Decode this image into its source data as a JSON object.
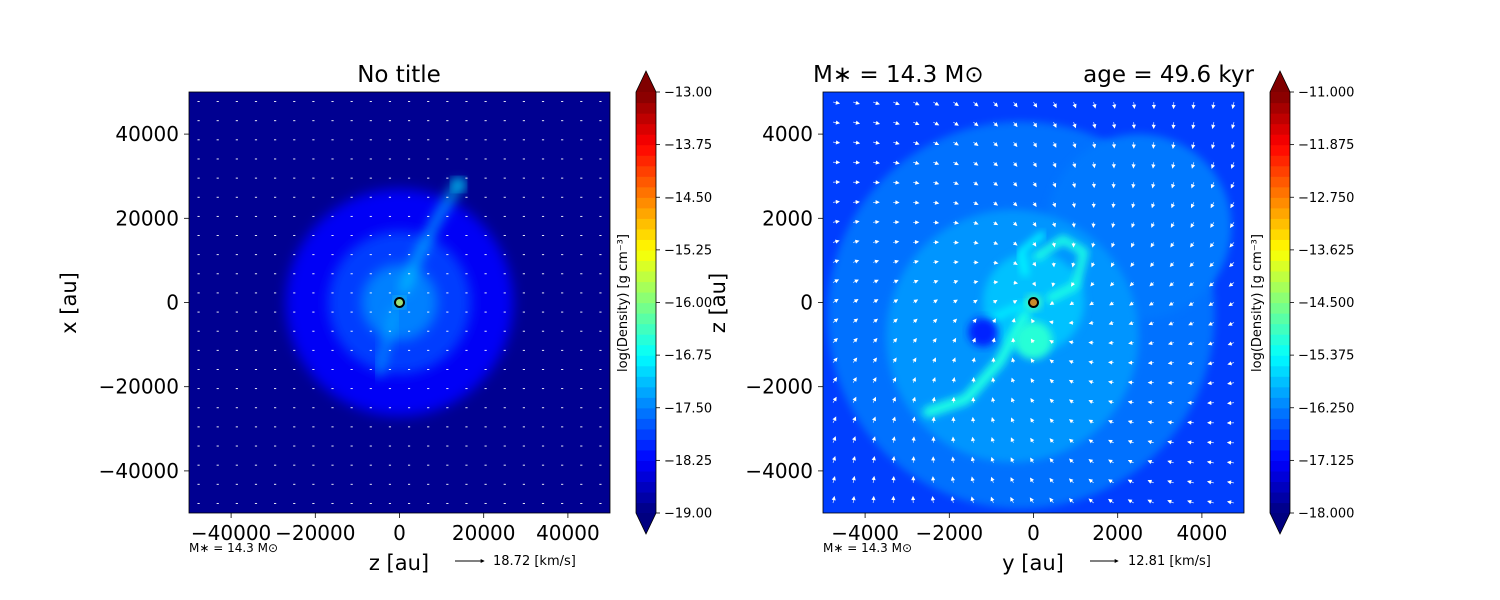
{
  "chart_data": [
    {
      "type": "heatmap",
      "title": "No title",
      "xlabel": "z [au]",
      "ylabel": "x [au]",
      "xlim": [
        -50000,
        50000
      ],
      "ylim": [
        -50000,
        50000
      ],
      "x_ticks": [
        -40000,
        -20000,
        0,
        20000,
        40000
      ],
      "y_ticks": [
        -40000,
        -20000,
        0,
        20000,
        40000
      ],
      "x_tick_labels": [
        "−40000",
        "−20000",
        "0",
        "20000",
        "40000"
      ],
      "y_tick_labels": [
        "−40000",
        "−20000",
        "0",
        "20000",
        "40000"
      ],
      "colorbar": {
        "label": "log(Density) [g cm$^{-3}$]",
        "label_display": "log(Density) [g cm⁻³]",
        "min": -19.0,
        "max": -13.0,
        "ticks": [
          -13.0,
          -13.75,
          -14.5,
          -15.25,
          -16.0,
          -16.75,
          -17.5,
          -18.25,
          -19.0
        ],
        "tick_labels": [
          "−13.00",
          "−13.75",
          "−14.50",
          "−15.25",
          "−16.00",
          "−16.75",
          "−17.50",
          "−18.25",
          "−19.00"
        ],
        "extend": "both"
      },
      "star_marker": {
        "x": 0,
        "y": 0
      },
      "mass_label": "M∗ = 14.3 M⊙",
      "quiver_key": "18.72 [km/s]",
      "features": [
        {
          "kind": "background",
          "value": -18.9
        },
        {
          "kind": "halo",
          "cx": 0,
          "cy": 0,
          "r": 27000,
          "value": -18.3
        },
        {
          "kind": "halo",
          "cx": 0,
          "cy": 0,
          "r": 17000,
          "value": -17.9
        },
        {
          "kind": "halo",
          "cx": 0,
          "cy": 0,
          "r": 9000,
          "value": -17.5
        },
        {
          "kind": "filament",
          "points": [
            [
              1000,
              3000
            ],
            [
              4000,
              10000
            ],
            [
              9000,
              20000
            ],
            [
              14000,
              28000
            ]
          ],
          "width": 1500,
          "value": -17.0
        },
        {
          "kind": "filament",
          "points": [
            [
              -1000,
              -2000
            ],
            [
              -3000,
              -9000
            ],
            [
              -5000,
              -17000
            ]
          ],
          "width": 1300,
          "value": -17.2
        },
        {
          "kind": "filament",
          "points": [
            [
              -9000,
              0
            ],
            [
              8000,
              0
            ]
          ],
          "width": 800,
          "value": -16.5
        },
        {
          "kind": "blob",
          "cx": 14000,
          "cy": 28000,
          "r": 1500,
          "value": -16.9
        },
        {
          "kind": "blob",
          "cx": 0,
          "cy": 0,
          "r": 1200,
          "value": -16.4
        }
      ]
    },
    {
      "type": "heatmap",
      "title": "M∗ = 14.3 M⊙          age = 49.6 kyr",
      "title_left": "M∗ = 14.3 M⊙",
      "title_right": "age = 49.6 kyr",
      "xlabel": "y [au]",
      "ylabel": "z [au]",
      "xlim": [
        -5000,
        5000
      ],
      "ylim": [
        -5000,
        5000
      ],
      "x_ticks": [
        -4000,
        -2000,
        0,
        2000,
        4000
      ],
      "y_ticks": [
        -4000,
        -2000,
        0,
        2000,
        4000
      ],
      "x_tick_labels": [
        "−4000",
        "−2000",
        "0",
        "2000",
        "4000"
      ],
      "y_tick_labels": [
        "−4000",
        "−2000",
        "0",
        "2000",
        "4000"
      ],
      "colorbar": {
        "label": "log(Density) [g cm$^{-3}$]",
        "label_display": "log(Density) [g cm⁻³]",
        "min": -18.0,
        "max": -11.0,
        "ticks": [
          -11.0,
          -11.875,
          -12.75,
          -13.625,
          -14.5,
          -15.375,
          -16.25,
          -17.125,
          -18.0
        ],
        "tick_labels": [
          "−11.000",
          "−11.875",
          "−12.750",
          "−13.625",
          "−14.500",
          "−15.375",
          "−16.250",
          "−17.125",
          "−18.000"
        ],
        "extend": "both"
      },
      "star_marker": {
        "x": 0,
        "y": 0
      },
      "mass_label": "M∗ = 14.3 M⊙",
      "quiver_key": "12.81 [km/s]",
      "features": [
        {
          "kind": "background",
          "value": -16.7
        },
        {
          "kind": "halo",
          "cx": -300,
          "cy": -300,
          "r": 4600,
          "value": -16.35
        },
        {
          "kind": "halo",
          "cx": 2500,
          "cy": 1800,
          "r": 2200,
          "value": -16.3
        },
        {
          "kind": "halo",
          "cx": -500,
          "cy": -800,
          "r": 3000,
          "value": -16.1
        },
        {
          "kind": "halo",
          "cx": 0,
          "cy": 0,
          "r": 1200,
          "value": -15.8
        },
        {
          "kind": "filament",
          "points": [
            [
              -2500,
              -2600
            ],
            [
              -1600,
              -2300
            ],
            [
              -800,
              -1400
            ],
            [
              -200,
              -300
            ]
          ],
          "width": 260,
          "value": -15.2
        },
        {
          "kind": "filament",
          "points": [
            [
              100,
              1100
            ],
            [
              700,
              1500
            ],
            [
              1200,
              1200
            ],
            [
              1000,
              400
            ],
            [
              400,
              100
            ]
          ],
          "width": 200,
          "value": -15.2
        },
        {
          "kind": "filament",
          "points": [
            [
              -200,
              700
            ],
            [
              -300,
              1200
            ],
            [
              200,
              1600
            ]
          ],
          "width": 160,
          "value": -15.4
        },
        {
          "kind": "filament",
          "points": [
            [
              -1200,
              -500
            ],
            [
              -600,
              -200
            ],
            [
              0,
              0
            ]
          ],
          "width": 170,
          "value": -15.5
        },
        {
          "kind": "blob",
          "cx": 0,
          "cy": -900,
          "r": 450,
          "value": -15.1
        },
        {
          "kind": "blob",
          "cx": -1200,
          "cy": -700,
          "r": 350,
          "value": -16.9
        },
        {
          "kind": "blob",
          "cx": 0,
          "cy": 0,
          "r": 180,
          "value": -14.9
        }
      ]
    }
  ]
}
